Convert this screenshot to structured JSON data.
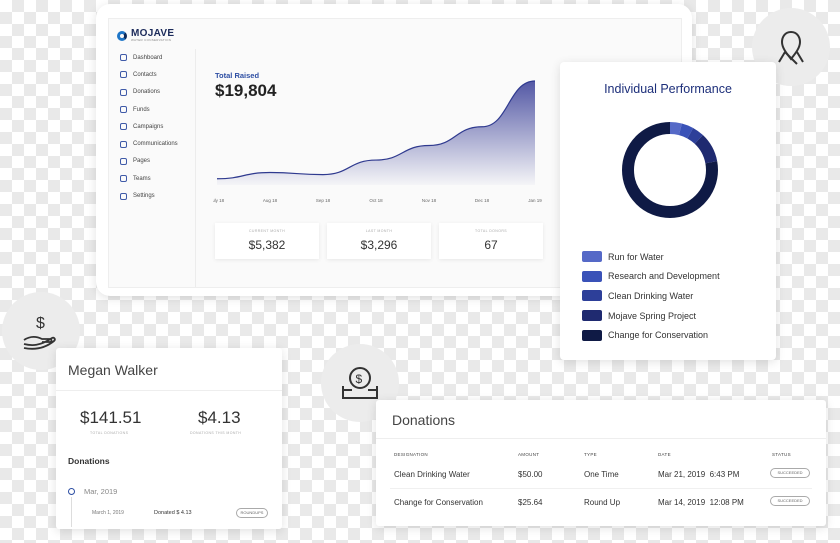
{
  "logo": {
    "name": "MOJAVE",
    "sub": "WATER CONSERVATION"
  },
  "sidebar": {
    "items": [
      {
        "label": "Dashboard"
      },
      {
        "label": "Contacts"
      },
      {
        "label": "Donations"
      },
      {
        "label": "Funds"
      },
      {
        "label": "Campaigns"
      },
      {
        "label": "Communications"
      },
      {
        "label": "Pages"
      },
      {
        "label": "Teams"
      },
      {
        "label": "Settings"
      }
    ]
  },
  "dashboard": {
    "total_label": "Total Raised",
    "total_value": "$19,804",
    "stats": [
      {
        "label": "CURRENT MONTH",
        "value": "$5,382"
      },
      {
        "label": "LAST MONTH",
        "value": "$3,296"
      },
      {
        "label": "TOTAL DONORS",
        "value": "67"
      }
    ]
  },
  "chart_data": {
    "type": "area",
    "x": [
      "July 18",
      "Aug 18",
      "Sep 18",
      "Oct 18",
      "Nov 18",
      "Dec 18",
      "Jan 19"
    ],
    "values": [
      1.5,
      3,
      2.5,
      6,
      9.5,
      14,
      25
    ],
    "fill": "#4a4fa0"
  },
  "performance": {
    "title": "Individual Performance",
    "items": [
      {
        "label": "Run for Water",
        "color": "#5569c7",
        "value": 4
      },
      {
        "label": "Research and Development",
        "color": "#3a52b8",
        "value": 4
      },
      {
        "label": "Clean Drinking Water",
        "color": "#2d3f99",
        "value": 4
      },
      {
        "label": "Mojave Spring Project",
        "color": "#1f2a70",
        "value": 10
      },
      {
        "label": "Change for Conservation",
        "color": "#0f1a45",
        "value": 78
      }
    ]
  },
  "icons": {
    "top_right": "ribbon-icon",
    "left": "donation-hand-icon",
    "middle": "donation-box-icon"
  },
  "megan": {
    "name": "Megan Walker",
    "total_value": "$141.51",
    "total_label": "TOTAL DONATIONS",
    "month_value": "$4.13",
    "month_label": "DONATIONS THIS MONTH",
    "section": "Donations",
    "month": "Mar, 2019",
    "date": "March 1, 2019",
    "donated": "Donated $ 4.13",
    "tag": "ROUNDUPS"
  },
  "donations": {
    "title": "Donations",
    "headers": [
      "DESIGNATION",
      "AMOUNT",
      "TYPE",
      "DATE",
      "STATUS"
    ],
    "rows": [
      {
        "designation": "Clean Drinking Water",
        "amount": "$50.00",
        "type": "One Time",
        "date": "Mar 21, 2019  6:43 PM",
        "status": "SUCCEEDED"
      },
      {
        "designation": "Change for Conservation",
        "amount": "$25.64",
        "type": "Round Up",
        "date": "Mar 14, 2019  12:08 PM",
        "status": "SUCCEEDED"
      }
    ]
  }
}
